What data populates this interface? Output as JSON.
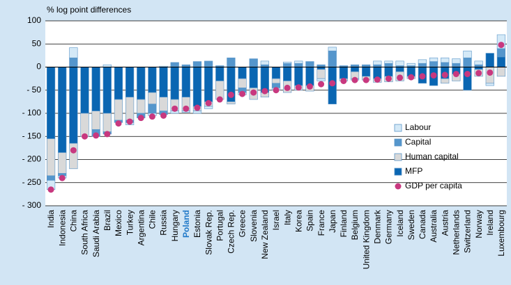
{
  "chart_data": {
    "type": "stacked_bar",
    "y_label": "% log point differences",
    "categories": [
      "India",
      "Indonesia",
      "China",
      "South Africa",
      "Saudi Arabia",
      "Brazil",
      "Mexico",
      "Turkey",
      "Argentina",
      "Chile",
      "Russia",
      "Hungary",
      "Poland",
      "Estonia",
      "Slovak Rep.",
      "Portugal",
      "Czech Rep.",
      "Greece",
      "Slovenia",
      "New Zealand",
      "Israel",
      "Italy",
      "Korea",
      "Spain",
      "France",
      "Japan",
      "Finland",
      "Belgium",
      "United Kingdom",
      "Denmark",
      "Germany",
      "Iceland",
      "Sweden",
      "Canada",
      "Australia",
      "Austria",
      "Netherlands",
      "Switzerland",
      "Norway",
      "Ireland",
      "Luxembourg"
    ],
    "highlight": "Poland",
    "series": [
      {
        "name": "Labour",
        "color": "#d4e9f7",
        "values": [
          -20,
          -5,
          22,
          0,
          0,
          5,
          0,
          -5,
          0,
          -5,
          2,
          -5,
          -3,
          -5,
          -5,
          0,
          0,
          -5,
          0,
          8,
          -5,
          3,
          5,
          0,
          -5,
          8,
          0,
          -3,
          0,
          8,
          5,
          10,
          5,
          8,
          8,
          10,
          10,
          15,
          8,
          -5,
          30
        ]
      },
      {
        "name": "Capital",
        "color": "#5596cc",
        "values": [
          -10,
          -5,
          20,
          0,
          -15,
          -5,
          -5,
          -5,
          -10,
          -20,
          -8,
          10,
          5,
          12,
          13,
          3,
          20,
          -10,
          18,
          5,
          -10,
          8,
          8,
          12,
          5,
          35,
          3,
          5,
          5,
          5,
          8,
          3,
          3,
          8,
          12,
          10,
          8,
          20,
          5,
          0,
          18
        ]
      },
      {
        "name": "Human capital",
        "color": "#d9d9d9",
        "values": [
          -80,
          -45,
          -55,
          -50,
          -40,
          -40,
          -45,
          -50,
          -30,
          -25,
          -30,
          -25,
          -30,
          -10,
          -10,
          -40,
          -5,
          -20,
          -25,
          -10,
          -10,
          -25,
          -10,
          -12,
          -20,
          0,
          -5,
          -15,
          -8,
          -8,
          -12,
          -20,
          -5,
          0,
          0,
          -10,
          -15,
          0,
          -15,
          -35,
          -20
        ]
      },
      {
        "name": "MFP",
        "color": "#0a66b2",
        "values": [
          -155,
          -185,
          -165,
          -100,
          -95,
          -100,
          -70,
          -65,
          -70,
          -55,
          -65,
          -70,
          -65,
          -85,
          -75,
          -30,
          -75,
          -25,
          -45,
          -55,
          -25,
          -30,
          -40,
          -40,
          -5,
          -80,
          -25,
          -10,
          -20,
          -25,
          -20,
          -10,
          -20,
          -35,
          -40,
          -25,
          -15,
          -50,
          -5,
          30,
          22
        ]
      }
    ],
    "gdp": {
      "name": "GDP per capita",
      "color": "#c8387f",
      "values": [
        -265,
        -240,
        -180,
        -150,
        -148,
        -145,
        -122,
        -118,
        -110,
        -107,
        -105,
        -90,
        -90,
        -88,
        -78,
        -70,
        -60,
        -58,
        -55,
        -52,
        -50,
        -45,
        -44,
        -42,
        -37,
        -35,
        -30,
        -28,
        -28,
        -27,
        -25,
        -23,
        -22,
        -20,
        -18,
        -17,
        -15,
        -15,
        -13,
        -12,
        48
      ]
    },
    "ylim": [
      -300,
      100
    ],
    "yticks": [
      100,
      50,
      0,
      {
        "value": -50,
        "label": "- 50"
      },
      {
        "value": -100,
        "label": "- 100"
      },
      {
        "value": -150,
        "label": "- 150"
      },
      {
        "value": -200,
        "label": "- 200"
      },
      {
        "value": -250,
        "label": "- 250"
      },
      {
        "value": -300,
        "label": "- 300"
      }
    ],
    "grid": true
  }
}
